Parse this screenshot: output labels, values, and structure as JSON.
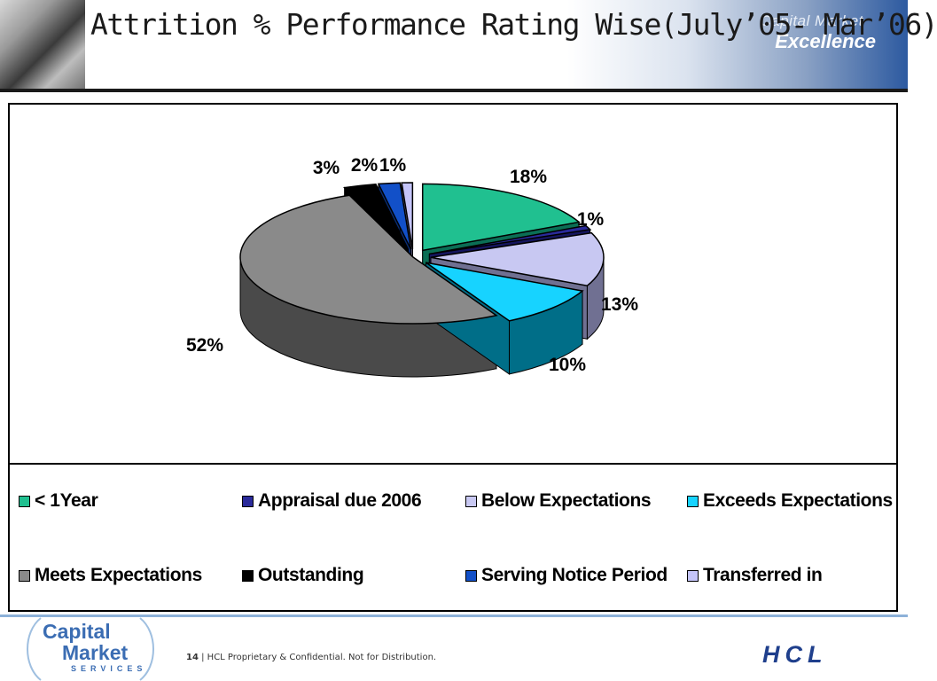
{
  "slide": {
    "title": "Attrition % Performance Rating Wise(July’05- Mar’06)",
    "header_brand_top": "Capital Market",
    "header_brand_bottom": "Excellence"
  },
  "chart_data": {
    "type": "pie",
    "title": "",
    "categories": [
      "< 1Year",
      "Appraisal due 2006",
      "Below Expectations",
      "Exceeds Expectations",
      "Meets Expectations",
      "Outstanding",
      "Serving Notice Period",
      "Transferred in"
    ],
    "values": [
      18,
      1,
      13,
      10,
      52,
      3,
      2,
      1
    ],
    "value_labels": [
      "18%",
      "1%",
      "13%",
      "10%",
      "52%",
      "3%",
      "2%",
      "1%"
    ],
    "colors": [
      "#20c090",
      "#2a2a9a",
      "#c8c8f2",
      "#17d3ff",
      "#8a8a8a",
      "#000000",
      "#1250c8",
      "#c4c4f8"
    ],
    "side_colors": [
      "#0b6e55",
      "#15155e",
      "#707092",
      "#006e88",
      "#4a4a4a",
      "#000000",
      "#0a2d72",
      "#6a6a90"
    ],
    "three_d": true,
    "exploded": true,
    "legend_position": "bottom"
  },
  "footer": {
    "logo_line1": "Capital",
    "logo_line2": "Market",
    "logo_line3": "SERVICES",
    "page_number": "14",
    "separator": "|",
    "confidential_text": "HCL Proprietary & Confidential. Not for Distribution.",
    "company_logo": "HCL"
  }
}
